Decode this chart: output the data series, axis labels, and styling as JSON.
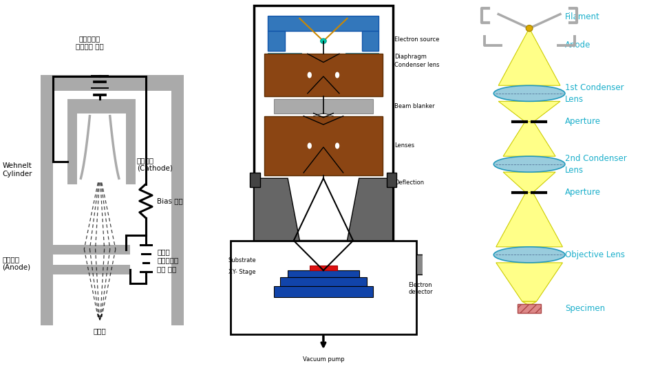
{
  "bg_color": "#ffffff",
  "cyan_color": "#1AAFCB",
  "gray_color": "#999999",
  "dark_gray": "#555555",
  "med_gray": "#AAAAAA",
  "light_gray": "#CCCCCC",
  "yellow_color": "#FFFF88",
  "yellow_edge": "#CCCC00",
  "blue_lens_color": "#99CCDD",
  "blue_lens_edge": "#2299BB",
  "brown_color": "#8B4513",
  "blue_col": "#3377BB",
  "dark_blue": "#1144AA",
  "panel1_labels": {
    "filament_heat": "필라멘트를\n가열하는 전원",
    "filament": "필라멘트\n(Cathode)",
    "bias": "Bias 전압",
    "accel": "전자를\n가속시키기\n위한 전원",
    "wehnelt": "Wehnelt\nCylinder",
    "anode": "가속전극\n(Anode)",
    "beam": "전자빔"
  },
  "panel2_labels": {
    "electron_source": "Electron source",
    "diaphragm": "Diaphragm",
    "condenser": "Condenser lens",
    "beam_blanker": "Beam blanker",
    "lenses": "Lenses",
    "deflection": "Deflection",
    "substrate": "Substrate",
    "xy_stage": "XY- Stage",
    "electron_detector": "Electron\ndetector",
    "vacuum_pump": "Vacuum pump"
  },
  "panel3_labels": {
    "filament": "Filament",
    "anode": "Anode",
    "condenser1": "1st Condenser\nLens",
    "aperture1": "Aperture",
    "condenser2": "2nd Condenser\nLens",
    "aperture2": "Aperture",
    "objective": "Objective Lens",
    "specimen": "Specimen"
  }
}
